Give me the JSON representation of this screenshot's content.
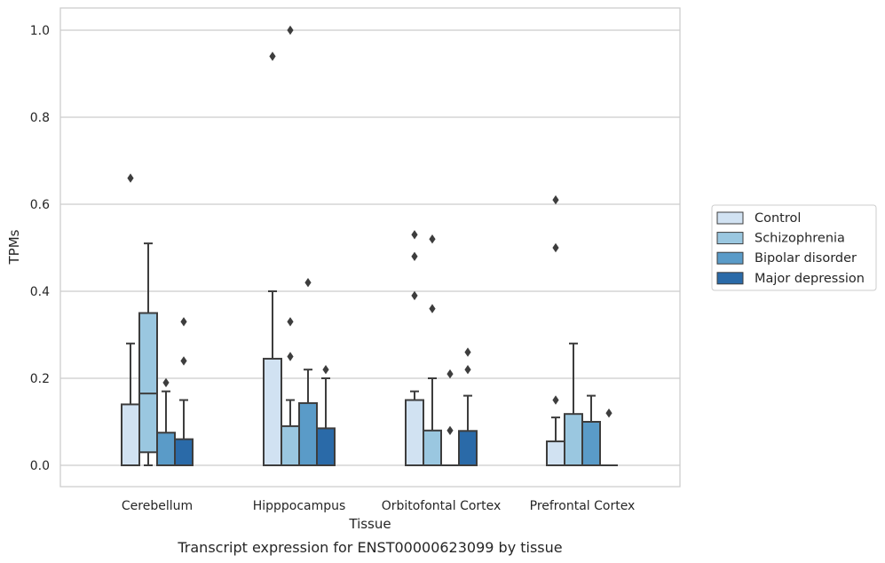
{
  "chart_data": {
    "type": "box",
    "xlabel": "Tissue",
    "ylabel": "TPMs",
    "caption": "Transcript expression for ENST00000623099 by tissue",
    "ylim": [
      -0.048,
      1.05
    ],
    "yticks": [
      0.0,
      0.2,
      0.4,
      0.6,
      0.8,
      1.0
    ],
    "ytick_labels": [
      "0.0",
      "0.2",
      "0.4",
      "0.6",
      "0.8",
      "1.0"
    ],
    "grid": true,
    "legend_position": "right",
    "categories": [
      "Cerebellum",
      "Hipppocampus",
      "Orbitofontal Cortex",
      "Prefrontal Cortex"
    ],
    "series": [
      {
        "name": "Control",
        "color": "#d1e2f2",
        "boxes": [
          {
            "min": 0.0,
            "q1": 0.0,
            "median": 0.0,
            "q3": 0.14,
            "max": 0.28,
            "outliers": [
              0.66
            ]
          },
          {
            "min": 0.0,
            "q1": 0.0,
            "median": 0.0,
            "q3": 0.245,
            "max": 0.4,
            "outliers": [
              0.94
            ]
          },
          {
            "min": 0.0,
            "q1": 0.0,
            "median": 0.0,
            "q3": 0.15,
            "max": 0.17,
            "outliers": [
              0.39,
              0.48,
              0.53
            ]
          },
          {
            "min": 0.0,
            "q1": 0.0,
            "median": 0.0,
            "q3": 0.055,
            "max": 0.11,
            "outliers": [
              0.15,
              0.5,
              0.61
            ]
          }
        ]
      },
      {
        "name": "Schizophrenia",
        "color": "#9ac7e0",
        "boxes": [
          {
            "min": 0.0,
            "q1": 0.03,
            "median": 0.165,
            "q3": 0.35,
            "max": 0.51,
            "outliers": []
          },
          {
            "min": 0.0,
            "q1": 0.0,
            "median": 0.0,
            "q3": 0.09,
            "max": 0.15,
            "outliers": [
              0.25,
              0.33,
              1.0
            ]
          },
          {
            "min": 0.0,
            "q1": 0.0,
            "median": 0.0,
            "q3": 0.08,
            "max": 0.2,
            "outliers": [
              0.36,
              0.52
            ]
          },
          {
            "min": 0.0,
            "q1": 0.0,
            "median": 0.0,
            "q3": 0.118,
            "max": 0.28,
            "outliers": []
          }
        ]
      },
      {
        "name": "Bipolar disorder",
        "color": "#5a9bc8",
        "boxes": [
          {
            "min": 0.0,
            "q1": 0.0,
            "median": 0.0,
            "q3": 0.075,
            "max": 0.17,
            "outliers": [
              0.19
            ]
          },
          {
            "min": 0.0,
            "q1": 0.0,
            "median": 0.0,
            "q3": 0.143,
            "max": 0.22,
            "outliers": [
              0.42
            ]
          },
          {
            "min": 0.0,
            "q1": 0.0,
            "median": 0.0,
            "q3": 0.0,
            "max": 0.0,
            "outliers": [
              0.08,
              0.21
            ]
          },
          {
            "min": 0.0,
            "q1": 0.0,
            "median": 0.0,
            "q3": 0.1,
            "max": 0.16,
            "outliers": []
          }
        ]
      },
      {
        "name": "Major depression",
        "color": "#2a6aa8",
        "boxes": [
          {
            "min": 0.0,
            "q1": 0.0,
            "median": 0.0,
            "q3": 0.06,
            "max": 0.15,
            "outliers": [
              0.24,
              0.33
            ]
          },
          {
            "min": 0.0,
            "q1": 0.0,
            "median": 0.0,
            "q3": 0.085,
            "max": 0.2,
            "outliers": [
              0.22
            ]
          },
          {
            "min": 0.0,
            "q1": 0.0,
            "median": 0.0,
            "q3": 0.079,
            "max": 0.16,
            "outliers": [
              0.22,
              0.26
            ]
          },
          {
            "min": 0.0,
            "q1": 0.0,
            "median": 0.0,
            "q3": 0.0,
            "max": 0.0,
            "outliers": [
              0.12
            ]
          }
        ]
      }
    ]
  }
}
